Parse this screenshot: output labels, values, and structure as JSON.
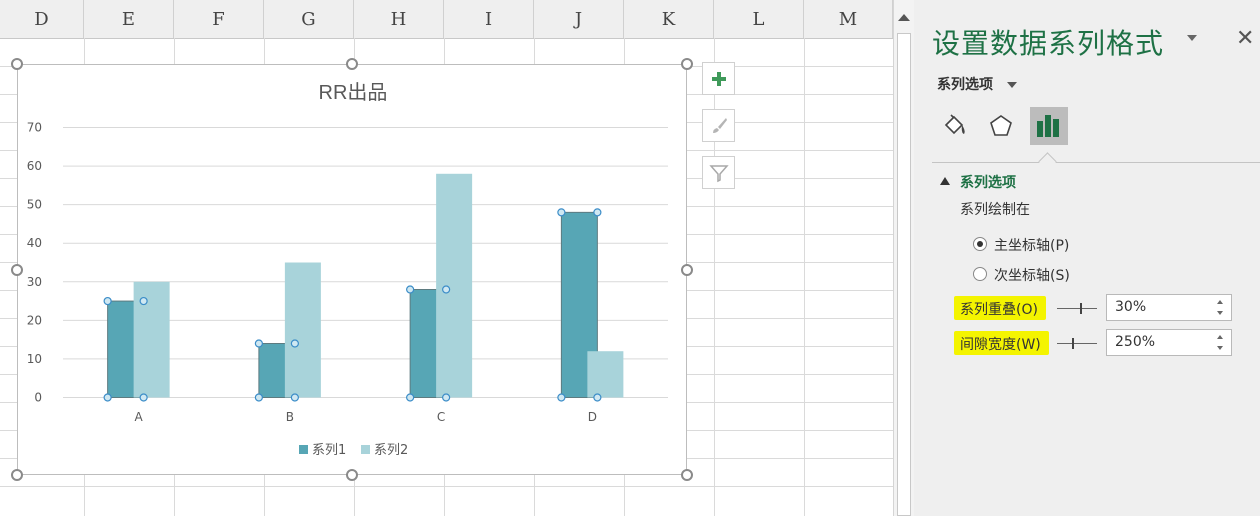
{
  "sheet": {
    "columns": [
      "D",
      "E",
      "F",
      "G",
      "H",
      "I",
      "J",
      "K",
      "L",
      "M"
    ]
  },
  "chart_data": {
    "type": "bar",
    "title": "RR出品",
    "categories": [
      "A",
      "B",
      "C",
      "D"
    ],
    "series": [
      {
        "name": "系列1",
        "values": [
          25,
          14,
          28,
          48
        ],
        "color": "#57a6b5"
      },
      {
        "name": "系列2",
        "values": [
          30,
          35,
          58,
          12
        ],
        "color": "#a8d3da"
      }
    ],
    "ylim": [
      0,
      70
    ],
    "yticks": [
      "0",
      "10",
      "20",
      "30",
      "40",
      "50",
      "60",
      "70"
    ],
    "grid": true,
    "legend_position": "bottom",
    "selected_series": "系列1"
  },
  "chart_tools": {
    "icons": [
      "plus-icon",
      "brush-icon",
      "filter-icon"
    ]
  },
  "pane": {
    "title": "设置数据系列格式",
    "series_options_dropdown": "系列选项",
    "tabs": [
      "fill-line-icon",
      "effects-pentagon-icon",
      "series-options-bars-icon"
    ],
    "active_tab": 2,
    "section_title": "系列选项",
    "plot_on_label": "系列绘制在",
    "primary_axis": "主坐标轴(P)",
    "secondary_axis": "次坐标轴(S)",
    "primary_selected": true,
    "overlap_label": "系列重叠(O)",
    "overlap_value": "30%",
    "gap_label": "间隙宽度(W)",
    "gap_value": "250%",
    "highlight_color": "#f4f400",
    "accent_color": "#1e7145"
  }
}
